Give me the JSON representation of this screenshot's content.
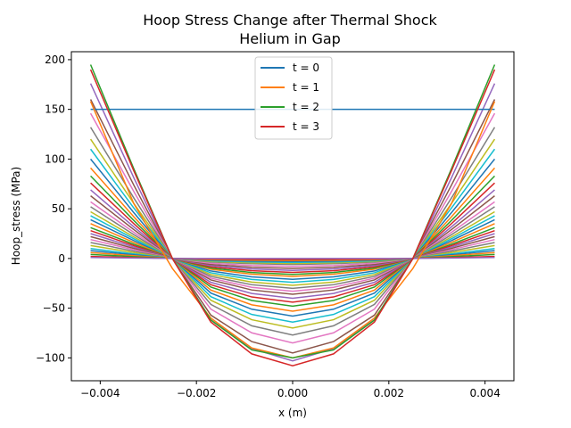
{
  "chart_data": {
    "type": "line",
    "title": "Hoop Stress Change after Thermal Shock",
    "subtitle": "Helium in Gap",
    "xlabel": "x (m)",
    "ylabel": "Hoop_stress (MPa)",
    "xlim": [
      -0.0046,
      0.0046
    ],
    "ylim": [
      -123,
      208
    ],
    "xticks": [
      -0.004,
      -0.002,
      0.0,
      0.002,
      0.004
    ],
    "xtick_labels": [
      "−0.004",
      "−0.002",
      "0.000",
      "0.002",
      "0.004"
    ],
    "yticks": [
      -100,
      -50,
      0,
      50,
      100,
      150,
      200
    ],
    "ytick_labels": [
      "−100",
      "−50",
      "0",
      "50",
      "100",
      "150",
      "200"
    ],
    "grid": false,
    "legend_position": "top-center",
    "x": [
      -0.0042,
      -0.0033,
      -0.0025,
      -0.0017,
      -0.00085,
      0.0,
      0.00085,
      0.0017,
      0.0025,
      0.0033,
      0.0042
    ],
    "series": [
      {
        "name": "t = 0",
        "color": "#1f77b4",
        "values": [
          150,
          150,
          150,
          150,
          150,
          150,
          150,
          150,
          150,
          150,
          150
        ]
      },
      {
        "name": "t = 1",
        "color": "#ff7f0e",
        "values": [
          158,
          55,
          -10,
          -60,
          -90,
          -100,
          -90,
          -60,
          -10,
          55,
          158
        ]
      },
      {
        "name": "t = 2",
        "color": "#2ca02c",
        "values": [
          195,
          90,
          0,
          -62,
          -92,
          -100,
          -92,
          -62,
          0,
          90,
          195
        ]
      },
      {
        "name": "t = 3",
        "color": "#d62728",
        "values": [
          190,
          88,
          0,
          -64,
          -96,
          -108,
          -96,
          -64,
          0,
          88,
          190
        ]
      }
    ],
    "extra_edge_values": [
      176,
      160,
      146,
      132,
      120,
      110,
      100,
      91,
      83,
      76,
      69,
      63,
      57,
      52,
      47,
      43,
      39,
      35,
      31,
      28,
      25,
      22,
      19,
      16,
      13,
      10,
      8,
      6,
      4,
      2,
      1
    ],
    "extra_center_values": [
      -103,
      -95,
      -85,
      -77,
      -70,
      -64,
      -58,
      -53,
      -48,
      -44,
      -40,
      -36,
      -33,
      -30,
      -27,
      -24,
      -21,
      -18,
      -16,
      -14,
      -12,
      -10,
      -8,
      -6,
      -5,
      -4,
      -3,
      -2,
      -1,
      -1,
      0
    ],
    "extra_colors": [
      "#9467bd",
      "#8c564b",
      "#e377c2",
      "#7f7f7f",
      "#bcbd22",
      "#17becf",
      "#1f77b4",
      "#ff7f0e",
      "#2ca02c",
      "#d62728"
    ]
  }
}
